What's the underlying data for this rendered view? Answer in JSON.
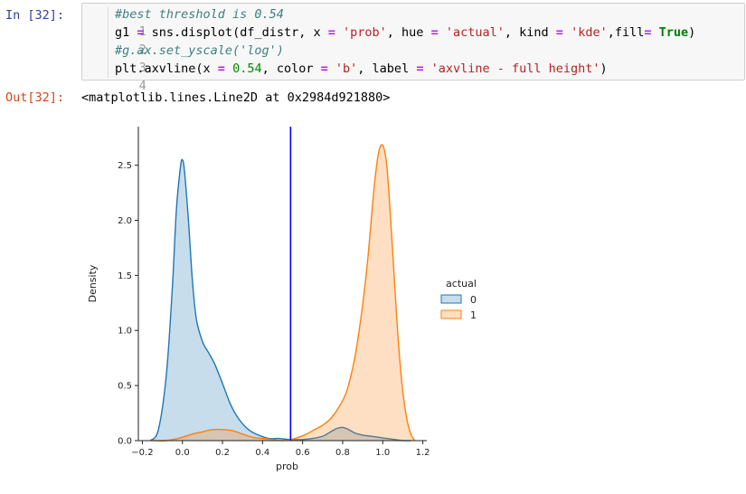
{
  "input_cell": {
    "prompt": "In [32]:",
    "lines": [
      {
        "num": "1",
        "comment": "#best threshold is 0.54"
      },
      {
        "num": "2"
      },
      {
        "num": "3",
        "comment": "#g.ax.set_yscale('log')"
      },
      {
        "num": "4"
      }
    ]
  },
  "output_cell": {
    "prompt": "Out[32]:",
    "text": "<matplotlib.lines.Line2D at 0x2984d921880>"
  },
  "chart_data": {
    "type": "area",
    "xlabel": "prob",
    "ylabel": "Density",
    "xlim": [
      -0.22,
      1.22
    ],
    "ylim": [
      0,
      2.85
    ],
    "xticks": [
      "−0.2",
      "0.0",
      "0.2",
      "0.4",
      "0.6",
      "0.8",
      "1.0",
      "1.2"
    ],
    "yticks": [
      "0.0",
      "0.5",
      "1.0",
      "1.5",
      "2.0",
      "2.5"
    ],
    "vline": {
      "x": 0.54,
      "color": "#0000ff"
    },
    "legend": {
      "title": "actual",
      "placement": "right"
    },
    "series": [
      {
        "name": "0",
        "color": "#1f77b4",
        "x": [
          -0.16,
          -0.12,
          -0.08,
          -0.05,
          -0.03,
          -0.01,
          0.0,
          0.01,
          0.03,
          0.05,
          0.07,
          0.1,
          0.13,
          0.16,
          0.2,
          0.24,
          0.28,
          0.33,
          0.38,
          0.43,
          0.48,
          0.54,
          0.6,
          0.65,
          0.7,
          0.74,
          0.77,
          0.8,
          0.83,
          0.86,
          0.9,
          0.94,
          0.98,
          1.02,
          1.06,
          1.1,
          1.14
        ],
        "y": [
          0.0,
          0.1,
          0.6,
          1.4,
          2.1,
          2.48,
          2.55,
          2.45,
          2.0,
          1.45,
          1.1,
          0.9,
          0.8,
          0.7,
          0.52,
          0.33,
          0.2,
          0.1,
          0.05,
          0.02,
          0.02,
          0.01,
          0.01,
          0.02,
          0.04,
          0.08,
          0.11,
          0.12,
          0.1,
          0.07,
          0.05,
          0.04,
          0.03,
          0.02,
          0.01,
          0.0,
          0.0
        ]
      },
      {
        "name": "1",
        "color": "#ff7f0e",
        "x": [
          -0.15,
          -0.08,
          0.0,
          0.05,
          0.1,
          0.15,
          0.2,
          0.25,
          0.3,
          0.35,
          0.4,
          0.45,
          0.5,
          0.54,
          0.58,
          0.62,
          0.66,
          0.7,
          0.74,
          0.78,
          0.82,
          0.86,
          0.89,
          0.92,
          0.94,
          0.96,
          0.98,
          1.0,
          1.02,
          1.04,
          1.06,
          1.08,
          1.1,
          1.12,
          1.14,
          1.16
        ],
        "y": [
          0.0,
          0.0,
          0.03,
          0.06,
          0.08,
          0.1,
          0.1,
          0.09,
          0.06,
          0.03,
          0.02,
          0.01,
          0.0,
          0.01,
          0.03,
          0.06,
          0.1,
          0.14,
          0.2,
          0.3,
          0.45,
          0.75,
          1.1,
          1.55,
          1.95,
          2.35,
          2.62,
          2.68,
          2.5,
          2.0,
          1.4,
          0.85,
          0.45,
          0.2,
          0.06,
          0.0
        ]
      }
    ]
  }
}
